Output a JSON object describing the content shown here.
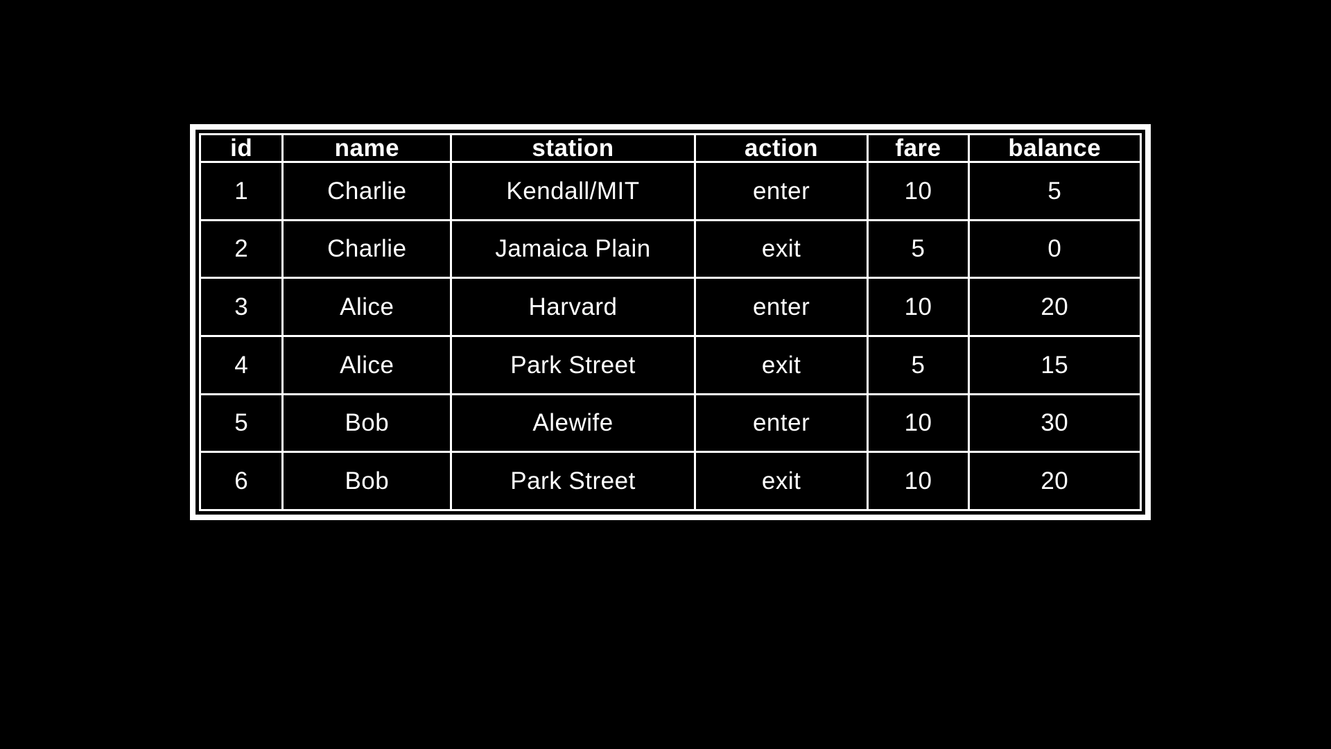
{
  "colors": {
    "background": "#000000",
    "table_frame": "#ffffff",
    "grid_lines": "#ffffff",
    "text": "#ffffff"
  },
  "chart_data": {
    "type": "table",
    "columns": [
      "id",
      "name",
      "station",
      "action",
      "fare",
      "balance"
    ],
    "rows": [
      [
        "1",
        "Charlie",
        "Kendall/MIT",
        "enter",
        "10",
        "5"
      ],
      [
        "2",
        "Charlie",
        "Jamaica Plain",
        "exit",
        "5",
        "0"
      ],
      [
        "3",
        "Alice",
        "Harvard",
        "enter",
        "10",
        "20"
      ],
      [
        "4",
        "Alice",
        "Park Street",
        "exit",
        "5",
        "15"
      ],
      [
        "5",
        "Bob",
        "Alewife",
        "enter",
        "10",
        "30"
      ],
      [
        "6",
        "Bob",
        "Park Street",
        "exit",
        "10",
        "20"
      ]
    ]
  }
}
